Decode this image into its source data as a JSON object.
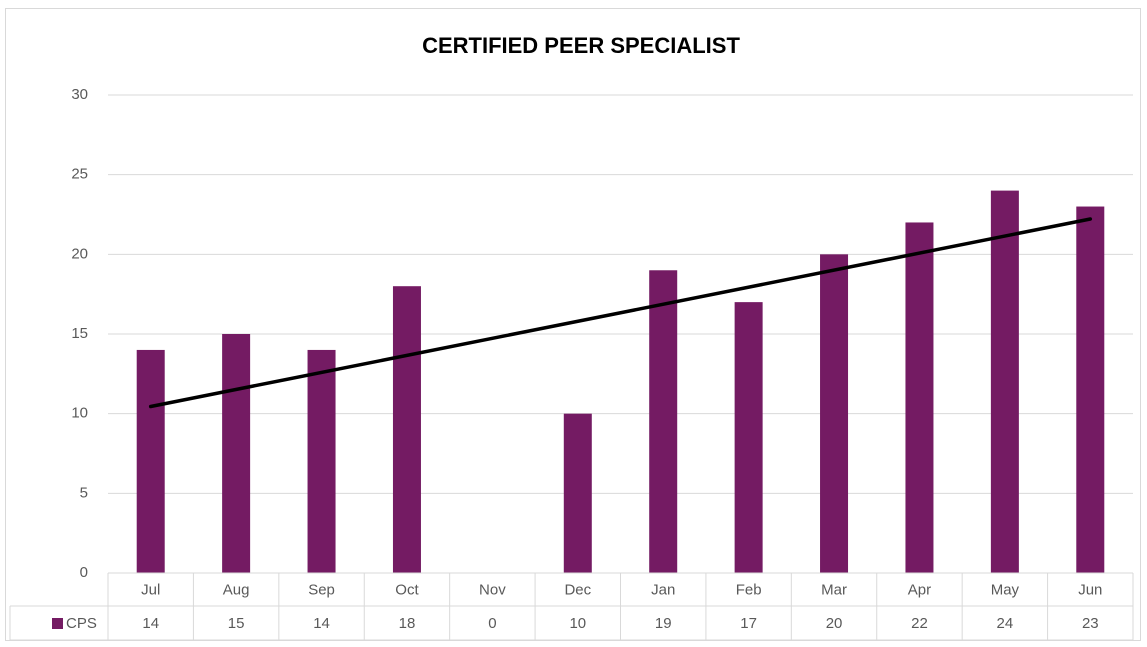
{
  "chart_data": {
    "type": "bar",
    "title": "CERTIFIED PEER SPECIALIST",
    "categories": [
      "Jul",
      "Aug",
      "Sep",
      "Oct",
      "Nov",
      "Dec",
      "Jan",
      "Feb",
      "Mar",
      "Apr",
      "May",
      "Jun"
    ],
    "series": [
      {
        "name": "CPS",
        "color": "#741b63",
        "values": [
          14,
          15,
          14,
          18,
          0,
          10,
          19,
          17,
          20,
          22,
          24,
          23
        ]
      }
    ],
    "ylim": [
      0,
      30
    ],
    "yticks": [
      0,
      5,
      10,
      15,
      20,
      25,
      30
    ],
    "grid": true,
    "trendline": "linear",
    "data_table": true
  }
}
